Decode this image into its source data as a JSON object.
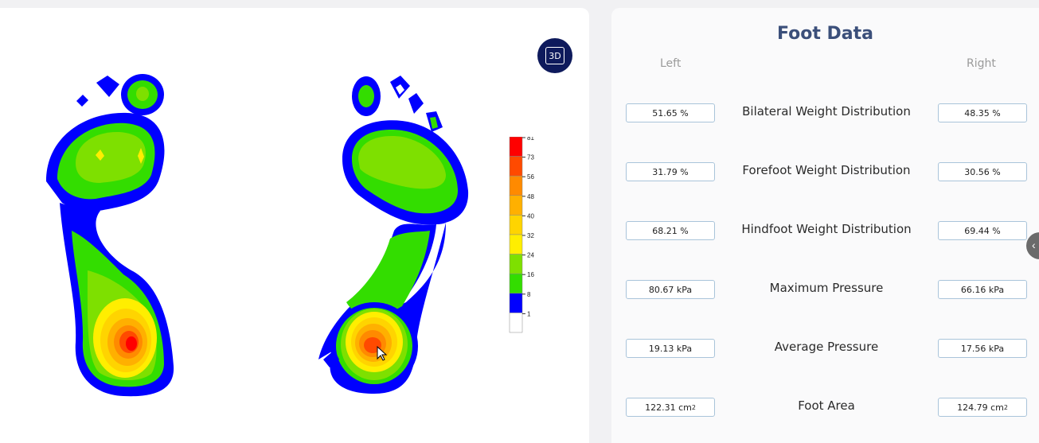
{
  "view_toggle": {
    "label": "3D"
  },
  "legend": {
    "ticks": [
      "81",
      "73",
      "56",
      "48",
      "40",
      "32",
      "24",
      "16",
      "8",
      "1"
    ],
    "colors": [
      "#ff0000",
      "#ff4a00",
      "#ff8a00",
      "#ffb000",
      "#ffd400",
      "#ffee00",
      "#7ee000",
      "#33dd00",
      "#0000ff",
      "#ffffff"
    ]
  },
  "panel": {
    "title": "Foot Data",
    "left_header": "Left",
    "right_header": "Right"
  },
  "metrics": [
    {
      "name": "Bilateral Weight Distribution",
      "left": "51.65 %",
      "right": "48.35 %"
    },
    {
      "name": "Forefoot Weight Distribution",
      "left": "31.79 %",
      "right": "30.56 %"
    },
    {
      "name": "Hindfoot Weight Distribution",
      "left": "68.21 %",
      "right": "69.44 %"
    },
    {
      "name": "Maximum Pressure",
      "left": "80.67 kPa",
      "right": "66.16 kPa"
    },
    {
      "name": "Average Pressure",
      "left": "19.13 kPa",
      "right": "17.56 kPa"
    },
    {
      "name": "Foot Area",
      "left": "122.31 cm",
      "right": "124.79 cm",
      "unit_sup": "2"
    }
  ],
  "icons": {
    "side_tab": "chevron-left-icon"
  }
}
